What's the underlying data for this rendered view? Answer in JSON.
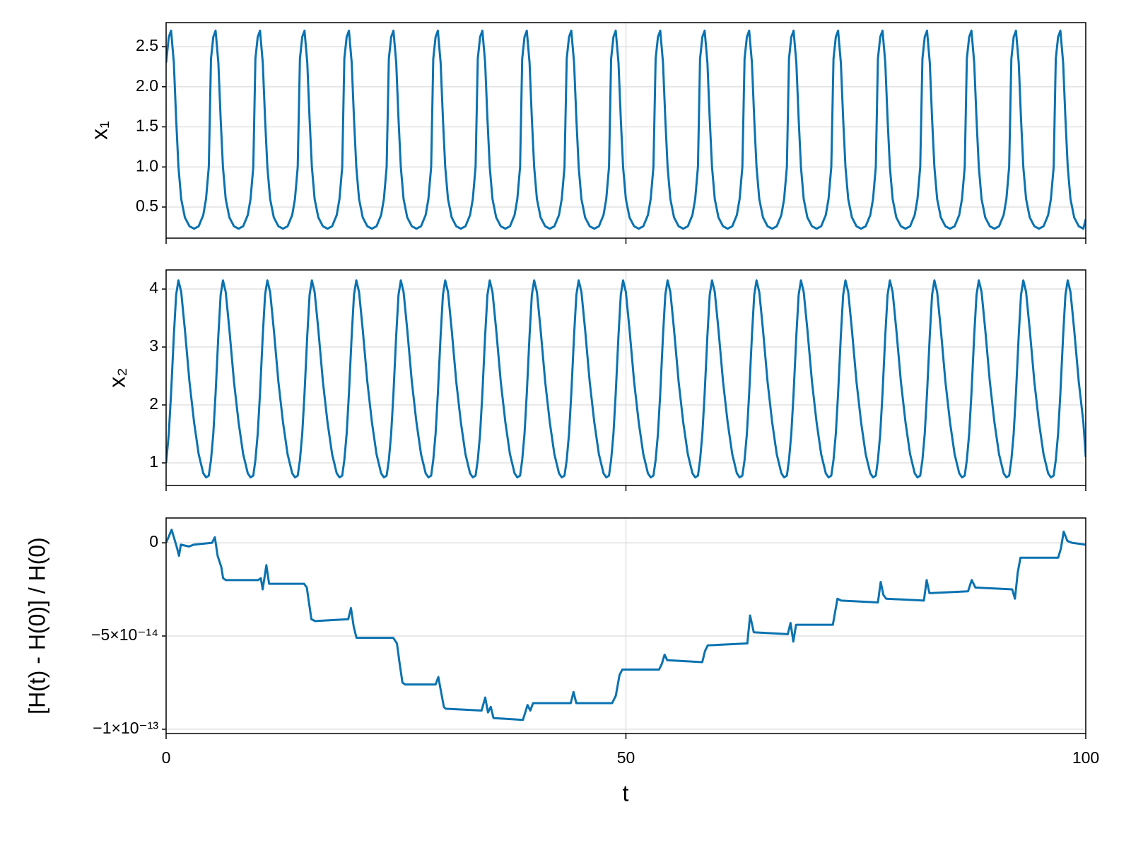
{
  "chart_data": {
    "type": "line",
    "xlabel": "t",
    "xlim": [
      0,
      100
    ],
    "xticks": [
      0,
      50,
      100
    ],
    "grid": true,
    "x": [
      0,
      0.29,
      0.54,
      0.84,
      1.09,
      1.34,
      1.64,
      2.04,
      2.54,
      3.04,
      3.54,
      4.04,
      4.34,
      4.64,
      4.88,
      5.13,
      5.38,
      5.68,
      5.93,
      6.18,
      6.48,
      6.88,
      7.38,
      7.88,
      8.38,
      8.88,
      9.18,
      9.48,
      9.71,
      9.96,
      10.21,
      10.51,
      10.76,
      11.01,
      11.31,
      11.71,
      12.21,
      12.71,
      13.21,
      13.71,
      14.01,
      14.31,
      14.55,
      14.8,
      15.05,
      15.35,
      15.6,
      15.85,
      16.15,
      16.55,
      17.05,
      17.55,
      18.05,
      18.55,
      18.85,
      19.15,
      19.38,
      19.63,
      19.88,
      20.18,
      20.43,
      20.68,
      20.98,
      21.38,
      21.88,
      22.38,
      22.88,
      23.38,
      23.68,
      23.98,
      24.22,
      24.47,
      24.72,
      25.02,
      25.27,
      25.52,
      25.82,
      26.22,
      26.72,
      27.22,
      27.72,
      28.22,
      28.52,
      28.82,
      29.05,
      29.3,
      29.55,
      29.85,
      30.1,
      30.35,
      30.65,
      31.05,
      31.55,
      32.05,
      32.55,
      33.05,
      33.35,
      33.65,
      33.89,
      34.14,
      34.39,
      34.69,
      34.94,
      35.19,
      35.49,
      35.89,
      36.39,
      36.89,
      37.39,
      37.89,
      38.19,
      38.49,
      38.72,
      38.97,
      39.22,
      39.52,
      39.77,
      40.02,
      40.32,
      40.72,
      41.22,
      41.72,
      42.22,
      42.72,
      43.02,
      43.32,
      43.56,
      43.81,
      44.06,
      44.36,
      44.61,
      44.86,
      45.16,
      45.56,
      46.06,
      46.56,
      47.06,
      47.56,
      47.86,
      48.16,
      48.39,
      48.64,
      48.89,
      49.19,
      49.44,
      49.69,
      49.99,
      50.39,
      50.89,
      51.39,
      51.89,
      52.39,
      52.69,
      52.99,
      53.23,
      53.48,
      53.73,
      54.03,
      54.28,
      54.53,
      54.83,
      55.23,
      55.73,
      56.23,
      56.73,
      57.23,
      57.53,
      57.83,
      58.06,
      58.31,
      58.56,
      58.86,
      59.11,
      59.36,
      59.66,
      60.06,
      60.56,
      61.06,
      61.56,
      62.06,
      62.36,
      62.66,
      62.9,
      63.15,
      63.4,
      63.7,
      63.95,
      64.2,
      64.5,
      64.9,
      65.4,
      65.9,
      66.4,
      66.9,
      67.2,
      67.5,
      67.73,
      67.98,
      68.23,
      68.53,
      68.78,
      69.03,
      69.33,
      69.73,
      70.23,
      70.73,
      71.23,
      71.73,
      72.03,
      72.33,
      72.57,
      72.82,
      73.07,
      73.37,
      73.62,
      73.87,
      74.17,
      74.57,
      75.07,
      75.57,
      76.07,
      76.57,
      76.87,
      77.17,
      77.4,
      77.65,
      77.9,
      78.2,
      78.45,
      78.7,
      79,
      79.4,
      79.9,
      80.4,
      80.9,
      81.4,
      81.7,
      82,
      82.24,
      82.49,
      82.74,
      83.04,
      83.29,
      83.54,
      83.84,
      84.24,
      84.74,
      85.24,
      85.74,
      86.24,
      86.54,
      86.84,
      87.07,
      87.32,
      87.57,
      87.87,
      88.12,
      88.37,
      88.67,
      89.07,
      89.57,
      90.07,
      90.57,
      91.07,
      91.37,
      91.67,
      91.91,
      92.16,
      92.41,
      92.71,
      92.96,
      93.21,
      93.51,
      93.91,
      94.41,
      94.91,
      95.41,
      95.91,
      96.21,
      96.51,
      96.74,
      96.99,
      97.24,
      97.54,
      97.79,
      98.04,
      98.34,
      98.74,
      99.24,
      99.74,
      100
    ],
    "panels": [
      {
        "ylabel": "x₁",
        "ylim": [
          0.112,
          2.8
        ],
        "yticks": [
          0.5,
          {
            "value": 1,
            "label": "1.0"
          },
          1.5,
          {
            "value": 2,
            "label": "2.0"
          },
          2.5
        ],
        "series": [
          {
            "color": "#0a72b0",
            "values": [
              2.3,
              2.62,
              2.7,
              2.3,
              1.6,
              1.0,
              0.6,
              0.37,
              0.26,
              0.23,
              0.26,
              0.4,
              0.6,
              1.0,
              2.35,
              2.62,
              2.7,
              2.3,
              1.6,
              1.0,
              0.6,
              0.37,
              0.26,
              0.23,
              0.26,
              0.4,
              0.6,
              1.0,
              2.35,
              2.62,
              2.7,
              2.3,
              1.6,
              1.0,
              0.6,
              0.37,
              0.26,
              0.23,
              0.26,
              0.4,
              0.6,
              1.0,
              2.35,
              2.62,
              2.7,
              2.3,
              1.6,
              1.0,
              0.6,
              0.37,
              0.26,
              0.23,
              0.26,
              0.4,
              0.6,
              1.0,
              2.35,
              2.62,
              2.7,
              2.3,
              1.6,
              1.0,
              0.6,
              0.37,
              0.26,
              0.23,
              0.26,
              0.4,
              0.6,
              1.0,
              2.35,
              2.62,
              2.7,
              2.3,
              1.6,
              1.0,
              0.6,
              0.37,
              0.26,
              0.23,
              0.26,
              0.4,
              0.6,
              1.0,
              2.35,
              2.62,
              2.7,
              2.3,
              1.6,
              1.0,
              0.6,
              0.37,
              0.26,
              0.23,
              0.26,
              0.4,
              0.6,
              1.0,
              2.35,
              2.62,
              2.7,
              2.3,
              1.6,
              1.0,
              0.6,
              0.37,
              0.26,
              0.23,
              0.26,
              0.4,
              0.6,
              1.0,
              2.35,
              2.62,
              2.7,
              2.3,
              1.6,
              1.0,
              0.6,
              0.37,
              0.26,
              0.23,
              0.26,
              0.4,
              0.6,
              1.0,
              2.35,
              2.62,
              2.7,
              2.3,
              1.6,
              1.0,
              0.6,
              0.37,
              0.26,
              0.23,
              0.26,
              0.4,
              0.6,
              1.0,
              2.35,
              2.62,
              2.7,
              2.3,
              1.6,
              1.0,
              0.6,
              0.37,
              0.26,
              0.23,
              0.26,
              0.4,
              0.6,
              1.0,
              2.35,
              2.62,
              2.7,
              2.3,
              1.6,
              1.0,
              0.6,
              0.37,
              0.26,
              0.23,
              0.26,
              0.4,
              0.6,
              1.0,
              2.35,
              2.62,
              2.7,
              2.3,
              1.6,
              1.0,
              0.6,
              0.37,
              0.26,
              0.23,
              0.26,
              0.4,
              0.6,
              1.0,
              2.35,
              2.62,
              2.7,
              2.3,
              1.6,
              1.0,
              0.6,
              0.37,
              0.26,
              0.23,
              0.26,
              0.4,
              0.6,
              1.0,
              2.35,
              2.62,
              2.7,
              2.3,
              1.6,
              1.0,
              0.6,
              0.37,
              0.26,
              0.23,
              0.26,
              0.4,
              0.6,
              1.0,
              2.35,
              2.62,
              2.7,
              2.3,
              1.6,
              1.0,
              0.6,
              0.37,
              0.26,
              0.23,
              0.26,
              0.4,
              0.6,
              1.0,
              2.35,
              2.62,
              2.7,
              2.3,
              1.6,
              1.0,
              0.6,
              0.37,
              0.26,
              0.23,
              0.26,
              0.4,
              0.6,
              1.0,
              2.35,
              2.62,
              2.7,
              2.3,
              1.6,
              1.0,
              0.6,
              0.37,
              0.26,
              0.23,
              0.26,
              0.4,
              0.6,
              1.0,
              2.35,
              2.62,
              2.7,
              2.3,
              1.6,
              1.0,
              0.6,
              0.37,
              0.26,
              0.23,
              0.26,
              0.4,
              0.6,
              1.0,
              2.35,
              2.62,
              2.7,
              2.3,
              1.6,
              1.0,
              0.6,
              0.37,
              0.26,
              0.23,
              0.26,
              0.4,
              0.6,
              1.0,
              2.35,
              2.62,
              2.7,
              2.3,
              1.6,
              1.0,
              0.6,
              0.37,
              0.26,
              0.23,
              0.35
            ]
          }
        ]
      },
      {
        "ylabel": "x₂",
        "ylim": [
          0.61,
          4.33
        ],
        "yticks": [
          1,
          2,
          3,
          4
        ],
        "series": [
          {
            "color": "#0a72b0",
            "values": [
              1.0,
              1.5,
              2.2,
              3.2,
              3.9,
              4.15,
              3.95,
              3.3,
              2.4,
              1.7,
              1.15,
              0.82,
              0.75,
              0.78,
              1.05,
              1.5,
              2.2,
              3.2,
              3.9,
              4.15,
              3.95,
              3.3,
              2.4,
              1.7,
              1.15,
              0.82,
              0.75,
              0.78,
              1.05,
              1.5,
              2.2,
              3.2,
              3.9,
              4.15,
              3.95,
              3.3,
              2.4,
              1.7,
              1.15,
              0.82,
              0.75,
              0.78,
              1.05,
              1.5,
              2.2,
              3.2,
              3.9,
              4.15,
              3.95,
              3.3,
              2.4,
              1.7,
              1.15,
              0.82,
              0.75,
              0.78,
              1.05,
              1.5,
              2.2,
              3.2,
              3.9,
              4.15,
              3.95,
              3.3,
              2.4,
              1.7,
              1.15,
              0.82,
              0.75,
              0.78,
              1.05,
              1.5,
              2.2,
              3.2,
              3.9,
              4.15,
              3.95,
              3.3,
              2.4,
              1.7,
              1.15,
              0.82,
              0.75,
              0.78,
              1.05,
              1.5,
              2.2,
              3.2,
              3.9,
              4.15,
              3.95,
              3.3,
              2.4,
              1.7,
              1.15,
              0.82,
              0.75,
              0.78,
              1.05,
              1.5,
              2.2,
              3.2,
              3.9,
              4.15,
              3.95,
              3.3,
              2.4,
              1.7,
              1.15,
              0.82,
              0.75,
              0.78,
              1.05,
              1.5,
              2.2,
              3.2,
              3.9,
              4.15,
              3.95,
              3.3,
              2.4,
              1.7,
              1.15,
              0.82,
              0.75,
              0.78,
              1.05,
              1.5,
              2.2,
              3.2,
              3.9,
              4.15,
              3.95,
              3.3,
              2.4,
              1.7,
              1.15,
              0.82,
              0.75,
              0.78,
              1.05,
              1.5,
              2.2,
              3.2,
              3.9,
              4.15,
              3.95,
              3.3,
              2.4,
              1.7,
              1.15,
              0.82,
              0.75,
              0.78,
              1.05,
              1.5,
              2.2,
              3.2,
              3.9,
              4.15,
              3.95,
              3.3,
              2.4,
              1.7,
              1.15,
              0.82,
              0.75,
              0.78,
              1.05,
              1.5,
              2.2,
              3.2,
              3.9,
              4.15,
              3.95,
              3.3,
              2.4,
              1.7,
              1.15,
              0.82,
              0.75,
              0.78,
              1.05,
              1.5,
              2.2,
              3.2,
              3.9,
              4.15,
              3.95,
              3.3,
              2.4,
              1.7,
              1.15,
              0.82,
              0.75,
              0.78,
              1.05,
              1.5,
              2.2,
              3.2,
              3.9,
              4.15,
              3.95,
              3.3,
              2.4,
              1.7,
              1.15,
              0.82,
              0.75,
              0.78,
              1.05,
              1.5,
              2.2,
              3.2,
              3.9,
              4.15,
              3.95,
              3.3,
              2.4,
              1.7,
              1.15,
              0.82,
              0.75,
              0.78,
              1.05,
              1.5,
              2.2,
              3.2,
              3.9,
              4.15,
              3.95,
              3.3,
              2.4,
              1.7,
              1.15,
              0.82,
              0.75,
              0.78,
              1.05,
              1.5,
              2.2,
              3.2,
              3.9,
              4.15,
              3.95,
              3.3,
              2.4,
              1.7,
              1.15,
              0.82,
              0.75,
              0.78,
              1.05,
              1.5,
              2.2,
              3.2,
              3.9,
              4.15,
              3.95,
              3.3,
              2.4,
              1.7,
              1.15,
              0.82,
              0.75,
              0.78,
              1.05,
              1.5,
              2.2,
              3.2,
              3.9,
              4.15,
              3.95,
              3.3,
              2.4,
              1.7,
              1.15,
              0.82,
              0.75,
              0.78,
              1.05,
              1.5,
              2.2,
              3.2,
              3.9,
              4.15,
              3.95,
              3.3,
              2.4,
              1.7,
              1.1
            ]
          }
        ]
      },
      {
        "ylabel": "[H(t) - H(0)] / H(0)",
        "ylim": [
          -1.023e-13,
          1.33e-14
        ],
        "yticks": [
          {
            "value": -1e-13,
            "label": "−1×10⁻¹³"
          },
          {
            "value": -5e-14,
            "label": "−5×10⁻¹⁴"
          },
          0
        ],
        "x": [
          0,
          0.6,
          1.2,
          1.4,
          1.6,
          2.5,
          3,
          5,
          5.3,
          5.6,
          6,
          6.2,
          6.5,
          10,
          10.3,
          10.5,
          10.9,
          11.2,
          15,
          15.3,
          15.5,
          15.8,
          16.2,
          19.8,
          20.1,
          20.4,
          20.7,
          24.7,
          25.1,
          25.4,
          25.7,
          26,
          29.3,
          29.6,
          29.9,
          30.2,
          30.4,
          34.3,
          34.7,
          35,
          35.3,
          35.6,
          38.8,
          39.3,
          39.6,
          39.9,
          44,
          44.3,
          44.6,
          48.5,
          48.9,
          49.3,
          49.6,
          53.6,
          53.9,
          54.2,
          54.5,
          58.3,
          58.6,
          58.9,
          63.2,
          63.5,
          63.9,
          67.6,
          67.9,
          68.2,
          68.5,
          72.5,
          73,
          73.4,
          77.4,
          77.7,
          78,
          78.3,
          82.4,
          82.7,
          83,
          87.2,
          87.6,
          88,
          92,
          92.3,
          92.6,
          92.9,
          97,
          97.3,
          97.6,
          98,
          98.5,
          100
        ],
        "series": [
          {
            "color": "#0a72b0",
            "values": [
              0,
              7e-15,
              -3e-15,
              -7e-15,
              -1e-15,
              -2e-15,
              -1e-15,
              0,
              3e-15,
              -7e-15,
              -1.3e-14,
              -1.9e-14,
              -2e-14,
              -2e-14,
              -1.9e-14,
              -2.5e-14,
              -1.2e-14,
              -2.2e-14,
              -2.2e-14,
              -2.4e-14,
              -3.1e-14,
              -4.1e-14,
              -4.2e-14,
              -4.1e-14,
              -3.5e-14,
              -4.5e-14,
              -5.1e-14,
              -5.1e-14,
              -5.4e-14,
              -6.5e-14,
              -7.5e-14,
              -7.6e-14,
              -7.6e-14,
              -7.2e-14,
              -8e-14,
              -8.8e-14,
              -8.9e-14,
              -9e-14,
              -8.3e-14,
              -9.1e-14,
              -8.8e-14,
              -9.4e-14,
              -9.5e-14,
              -8.7e-14,
              -9e-14,
              -8.6e-14,
              -8.6e-14,
              -8e-14,
              -8.6e-14,
              -8.6e-14,
              -8.2e-14,
              -7.1e-14,
              -6.8e-14,
              -6.8e-14,
              -6.5e-14,
              -6e-14,
              -6.3e-14,
              -6.4e-14,
              -5.8e-14,
              -5.5e-14,
              -5.4e-14,
              -3.9e-14,
              -4.8e-14,
              -4.9e-14,
              -4.3e-14,
              -5.3e-14,
              -4.4e-14,
              -4.4e-14,
              -3e-14,
              -3.1e-14,
              -3.2e-14,
              -2.1e-14,
              -2.8e-14,
              -3e-14,
              -3.1e-14,
              -2e-14,
              -2.7e-14,
              -2.6e-14,
              -2e-14,
              -2.4e-14,
              -2.5e-14,
              -3e-14,
              -1.6e-14,
              -8e-15,
              -8e-15,
              -3e-15,
              6e-15,
              1e-15,
              0,
              -1e-15
            ]
          }
        ]
      }
    ]
  }
}
